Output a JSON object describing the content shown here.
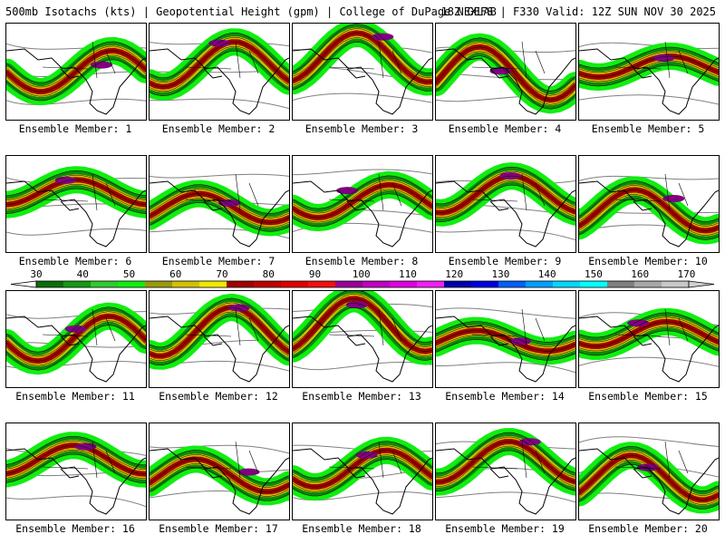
{
  "header": {
    "left": "500mb Isotachs (kts) | Geopotential Height (gpm) | College of DuPage NEXLAB",
    "right": "18Z GEFS | F330 Valid: 12Z SUN NOV 30 2025"
  },
  "members": [
    {
      "label": "Ensemble Member: 1"
    },
    {
      "label": "Ensemble Member: 2"
    },
    {
      "label": "Ensemble Member: 3"
    },
    {
      "label": "Ensemble Member: 4"
    },
    {
      "label": "Ensemble Member: 5"
    },
    {
      "label": "Ensemble Member: 6"
    },
    {
      "label": "Ensemble Member: 7"
    },
    {
      "label": "Ensemble Member: 8"
    },
    {
      "label": "Ensemble Member: 9"
    },
    {
      "label": "Ensemble Member: 10"
    },
    {
      "label": "Ensemble Member: 11"
    },
    {
      "label": "Ensemble Member: 12"
    },
    {
      "label": "Ensemble Member: 13"
    },
    {
      "label": "Ensemble Member: 14"
    },
    {
      "label": "Ensemble Member: 15"
    },
    {
      "label": "Ensemble Member: 16"
    },
    {
      "label": "Ensemble Member: 17"
    },
    {
      "label": "Ensemble Member: 18"
    },
    {
      "label": "Ensemble Member: 19"
    },
    {
      "label": "Ensemble Member: 20"
    }
  ],
  "colorbar": {
    "labels": [
      "30",
      "40",
      "50",
      "60",
      "70",
      "80",
      "90",
      "100",
      "110",
      "120",
      "130",
      "140",
      "150",
      "160",
      "170"
    ],
    "colors": [
      "#0a6e0a",
      "#139a13",
      "#2ecc2e",
      "#10ee10",
      "#9a9a10",
      "#d4c000",
      "#f0e800",
      "#a00000",
      "#c00000",
      "#e00000",
      "#f01010",
      "#9a009a",
      "#c000c0",
      "#e000e0",
      "#f020f0",
      "#0000aa",
      "#0000e0",
      "#0060ff",
      "#00a0ff",
      "#00d8ff",
      "#00ffff",
      "#808080",
      "#a8a8a8",
      "#c8c8c8"
    ]
  },
  "colors": {
    "jet_outer": "#10ee10",
    "jet_mid": "#0a8a0a",
    "jet_yellow": "#d4c000",
    "jet_core": "#a00000",
    "jet_max": "#800080",
    "height_contour": "#808080",
    "coastline": "#000000"
  }
}
